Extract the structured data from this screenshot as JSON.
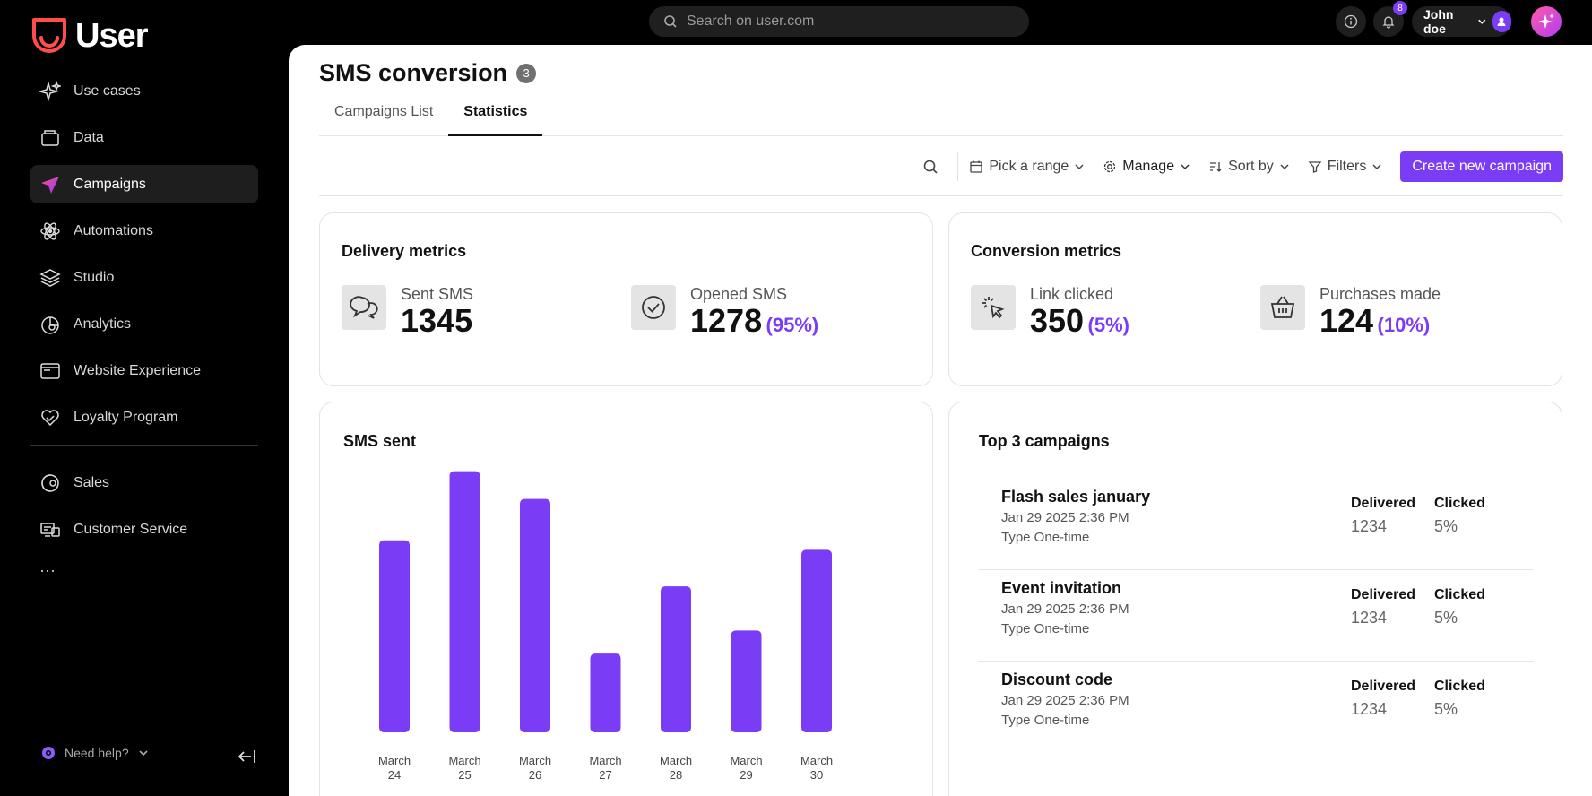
{
  "brand": {
    "name": "User",
    "accent": "#7b3cf5",
    "logo_color": "#ff4d4d"
  },
  "sidebar": {
    "items": [
      {
        "label": "Use cases",
        "icon": "sparkles-icon"
      },
      {
        "label": "Data",
        "icon": "database-icon"
      },
      {
        "label": "Campaigns",
        "icon": "paper-plane-icon",
        "active": true
      },
      {
        "label": "Automations",
        "icon": "atom-icon"
      },
      {
        "label": "Studio",
        "icon": "layers-icon"
      },
      {
        "label": "Analytics",
        "icon": "pie-chart-icon"
      },
      {
        "label": "Website Experience",
        "icon": "browser-window-icon"
      },
      {
        "label": "Loyalty Program",
        "icon": "heart-hand-icon"
      }
    ],
    "secondary": [
      {
        "label": "Sales",
        "icon": "sales-icon"
      },
      {
        "label": "Customer Service",
        "icon": "support-chat-icon"
      }
    ],
    "more": "···",
    "help": "Need help?"
  },
  "topbar": {
    "search_placeholder": "Search on user.com",
    "notifications_count": "8",
    "user_name": "John doe"
  },
  "page": {
    "title": "SMS conversion",
    "count": "3",
    "tabs": [
      {
        "label": "Campaigns List",
        "active": false
      },
      {
        "label": "Statistics",
        "active": true
      }
    ]
  },
  "toolbar": {
    "range": "Pick a range",
    "manage": "Manage",
    "sort": "Sort by",
    "filters": "Filters",
    "create": "Create new campaign"
  },
  "delivery": {
    "title": "Delivery metrics",
    "sent": {
      "label": "Sent SMS",
      "value": "1345"
    },
    "opened": {
      "label": "Opened SMS",
      "value": "1278",
      "pct": "(95%)"
    }
  },
  "conversion": {
    "title": "Conversion metrics",
    "clicked": {
      "label": "Link clicked",
      "value": "350",
      "pct": "(5%)"
    },
    "purchases": {
      "label": "Purchases made",
      "value": "124",
      "pct": "(10%)"
    }
  },
  "sms_chart": {
    "title": "SMS sent"
  },
  "chart_data": {
    "type": "bar",
    "title": "SMS sent",
    "categories": [
      "March 24",
      "March 25",
      "March 26",
      "March 27",
      "March 28",
      "March 29",
      "March 30"
    ],
    "values": [
      200,
      272,
      243,
      82,
      152,
      106,
      190
    ],
    "ylim": [
      0,
      280
    ],
    "color": "#7b3cf5",
    "grid": false
  },
  "top_campaigns": {
    "title": "Top 3 campaigns",
    "delivered_header": "Delivered",
    "clicked_header": "Clicked",
    "items": [
      {
        "name": "Flash sales january",
        "date": "Jan 29 2025 2:36 PM",
        "type": "Type One-time",
        "delivered": "1234",
        "clicked": "5%"
      },
      {
        "name": "Event invitation",
        "date": "Jan 29 2025 2:36 PM",
        "type": "Type One-time",
        "delivered": "1234",
        "clicked": "5%"
      },
      {
        "name": "Discount code",
        "date": "Jan 29 2025 2:36 PM",
        "type": "Type One-time",
        "delivered": "1234",
        "clicked": "5%"
      }
    ]
  }
}
